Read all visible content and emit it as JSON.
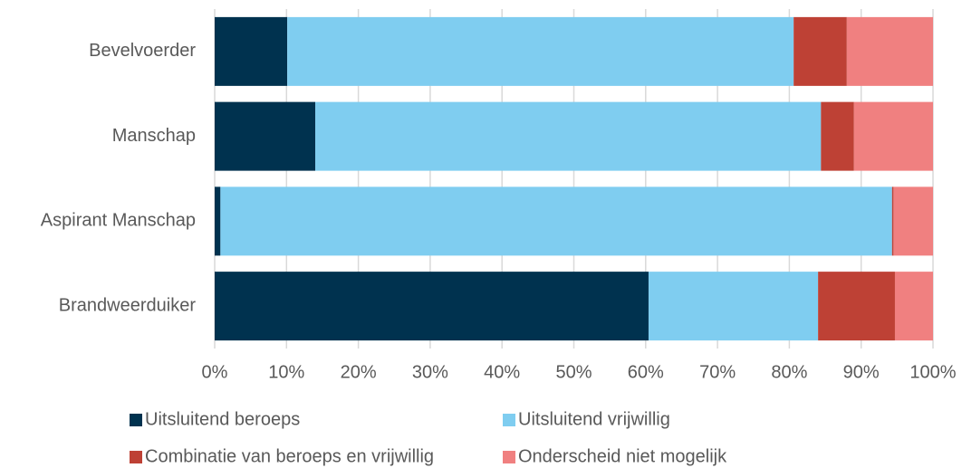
{
  "chart_data": {
    "type": "stacked_barh",
    "categories": [
      "Bevelvoerder",
      "Manschap",
      "Aspirant Manschap",
      "Brandweerduiker"
    ],
    "series": [
      {
        "name": "Uitsluitend beroeps",
        "color": "#00324f",
        "values": [
          10.1,
          14.0,
          0.8,
          60.4
        ]
      },
      {
        "name": "Uitsluitend vrijwillig",
        "color": "#7fcdf0",
        "values": [
          70.5,
          70.4,
          93.5,
          23.6
        ]
      },
      {
        "name": "Combinatie van beroeps en vrijwillig",
        "color": "#be4135",
        "values": [
          7.4,
          4.6,
          0.2,
          10.7
        ]
      },
      {
        "name": "Onderscheid niet mogelijk",
        "color": "#f08080",
        "values": [
          12.0,
          11.0,
          5.5,
          5.3
        ]
      }
    ],
    "xlim": [
      0,
      100
    ],
    "xticks": [
      {
        "value": 0,
        "label": "0%"
      },
      {
        "value": 10,
        "label": "10%"
      },
      {
        "value": 20,
        "label": "20%"
      },
      {
        "value": 30,
        "label": "30%"
      },
      {
        "value": 40,
        "label": "40%"
      },
      {
        "value": 50,
        "label": "50%"
      },
      {
        "value": 60,
        "label": "60%"
      },
      {
        "value": 70,
        "label": "70%"
      },
      {
        "value": 80,
        "label": "80%"
      },
      {
        "value": 90,
        "label": "90%"
      },
      {
        "value": 100,
        "label": "100%"
      }
    ],
    "grid": true
  }
}
